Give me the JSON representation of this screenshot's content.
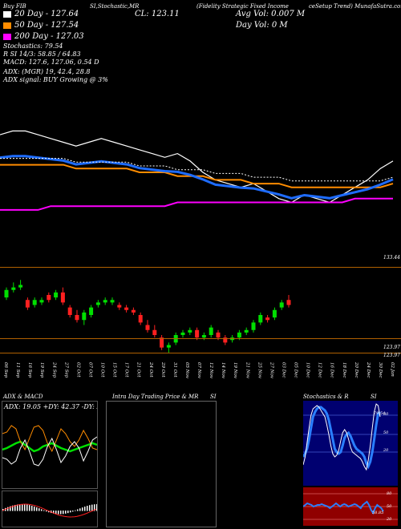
{
  "header": {
    "title_left": "Buy FIB",
    "title_mid": "SI,Stochastic,MR",
    "title_right": "(Fidelity Strategic Fixed Income",
    "title_right2": "ceSetup Trend) MunafaSutra.com",
    "close": "CL: 123.11",
    "avg_vol": "Avg Vol: 0.007 M",
    "day_vol": "Day Vol: 0   M",
    "ema20": "20  Day - 127.64",
    "ema50": "50  Day - 127.54",
    "ema200": "200  Day - 127.03",
    "stochastics": "Stochastics: 79.54",
    "rsi": "R          SI 14/3: 58.85 / 64.83",
    "macd": "MACD: 127.6, 127.06, 0.54  D",
    "adx": "ADX:                  (MGR) 19, 42.4, 28.8",
    "adx_signal": "ADX  signal:                    BUY Growing @ 3%"
  },
  "colors": {
    "ema20": "#ffffff",
    "ema50": "#ff8c00",
    "ema200": "#ff00ff",
    "blue": "#1e6cff",
    "up": "#00e000",
    "down": "#ff2020",
    "sep": "#b06000"
  },
  "price_axis": [
    "133.44",
    "123.97",
    "123.97"
  ],
  "x_labels": [
    "06 Sep",
    "11 Sep",
    "16 Sep",
    "19 Sep",
    "24 Sep",
    "27 Sep",
    "02 Oct",
    "07 Oct",
    "10 Oct",
    "15 Oct",
    "17 Oct",
    "21 Oct",
    "24 Oct",
    "29 Oct",
    "31 Oct",
    "05 Nov",
    "07 Nov",
    "12 Nov",
    "14 Nov",
    "19 Nov",
    "21 Nov",
    "25 Nov",
    "27 Nov",
    "03 Dec",
    "05 Dec",
    "10 Dec",
    "12 Dec",
    "16 Dec",
    "18 Dec",
    "20 Dec",
    "24 Dec",
    "30 Dec",
    "02 Jan"
  ],
  "panels": {
    "adx_title": "ADX  & MACD",
    "adx_values": "ADX: 19.05 +DY: 42.37 -DY: 28.81",
    "intra_title": "Intra  Day Trading Price  & MR",
    "intra_si": "SI",
    "stoch_title": "Stochastics & R",
    "stoch_si": "SI",
    "stoch_ticks": [
      "80",
      "50",
      "20"
    ],
    "stoch_val": "79.54",
    "rsi_ticks": [
      "80",
      "50",
      "20"
    ],
    "rsi_val": "58.85"
  },
  "chart_data": [
    {
      "type": "candlestick",
      "title": "FIB daily candles",
      "ohlc": [
        [
          124.9,
          125.3,
          124.8,
          125.2
        ],
        [
          125.2,
          125.5,
          125.1,
          125.3
        ],
        [
          125.3,
          125.6,
          125.2,
          125.4
        ],
        [
          124.8,
          124.9,
          124.4,
          124.5
        ],
        [
          124.6,
          124.9,
          124.5,
          124.8
        ],
        [
          124.7,
          124.9,
          124.6,
          124.8
        ],
        [
          125.0,
          125.1,
          124.7,
          124.8
        ],
        [
          124.9,
          125.2,
          124.8,
          125.1
        ],
        [
          125.1,
          125.3,
          124.6,
          124.7
        ],
        [
          124.5,
          124.6,
          124.1,
          124.2
        ],
        [
          124.2,
          124.4,
          123.9,
          124.0
        ],
        [
          124.0,
          124.4,
          123.8,
          124.3
        ],
        [
          124.2,
          124.6,
          124.1,
          124.5
        ],
        [
          124.6,
          124.8,
          124.5,
          124.7
        ],
        [
          124.7,
          124.9,
          124.6,
          124.8
        ],
        [
          124.7,
          124.9,
          124.6,
          124.8
        ],
        [
          124.6,
          124.7,
          124.4,
          124.5
        ],
        [
          124.5,
          124.6,
          124.3,
          124.4
        ],
        [
          124.4,
          124.5,
          124.2,
          124.3
        ],
        [
          124.2,
          124.3,
          123.8,
          123.9
        ],
        [
          123.8,
          124.0,
          123.5,
          123.6
        ],
        [
          123.6,
          123.8,
          123.3,
          123.4
        ],
        [
          123.3,
          123.4,
          122.8,
          122.9
        ],
        [
          122.9,
          123.1,
          122.7,
          123.0
        ],
        [
          123.1,
          123.5,
          123.0,
          123.4
        ],
        [
          123.4,
          123.6,
          123.3,
          123.5
        ],
        [
          123.5,
          123.7,
          123.4,
          123.6
        ],
        [
          123.6,
          123.7,
          123.2,
          123.3
        ],
        [
          123.3,
          123.5,
          123.2,
          123.4
        ],
        [
          123.4,
          123.8,
          123.3,
          123.7
        ],
        [
          123.5,
          123.6,
          123.2,
          123.3
        ],
        [
          123.3,
          123.4,
          123.0,
          123.1
        ],
        [
          123.2,
          123.4,
          123.1,
          123.3
        ],
        [
          123.3,
          123.6,
          123.2,
          123.5
        ],
        [
          123.5,
          123.7,
          123.4,
          123.6
        ],
        [
          123.6,
          124.0,
          123.5,
          123.9
        ],
        [
          123.9,
          124.3,
          123.8,
          124.2
        ],
        [
          124.1,
          124.2,
          123.9,
          124.0
        ],
        [
          124.1,
          124.5,
          124.0,
          124.4
        ],
        [
          124.5,
          124.8,
          124.4,
          124.7
        ],
        [
          124.8,
          125.0,
          124.5,
          124.6
        ]
      ],
      "ylim": [
        122.6,
        125.8
      ]
    },
    {
      "type": "line",
      "title": "EMA and bands",
      "series": [
        {
          "name": "20  Day",
          "values": [
            127.2,
            127.3,
            127.3,
            127.2,
            127.1,
            127.0,
            126.9,
            127.0,
            127.1,
            127.0,
            126.9,
            126.8,
            126.7,
            126.6,
            126.7,
            126.5,
            126.2,
            126.0,
            125.9,
            125.8,
            125.9,
            125.7,
            125.5,
            125.4,
            125.6,
            125.5,
            125.4,
            125.6,
            125.8,
            126.0,
            126.3,
            126.5
          ]
        },
        {
          "name": "50  Day",
          "values": [
            126.4,
            126.4,
            126.4,
            126.4,
            126.4,
            126.4,
            126.3,
            126.3,
            126.3,
            126.3,
            126.3,
            126.2,
            126.2,
            126.2,
            126.1,
            126.1,
            126.1,
            126.0,
            126.0,
            126.0,
            125.9,
            125.9,
            125.9,
            125.8,
            125.8,
            125.8,
            125.8,
            125.8,
            125.8,
            125.8,
            125.8,
            125.9
          ]
        },
        {
          "name": "200  Day",
          "values": [
            125.2,
            125.2,
            125.2,
            125.2,
            125.3,
            125.3,
            125.3,
            125.3,
            125.3,
            125.3,
            125.3,
            125.3,
            125.3,
            125.3,
            125.4,
            125.4,
            125.4,
            125.4,
            125.4,
            125.4,
            125.4,
            125.4,
            125.4,
            125.4,
            125.4,
            125.4,
            125.4,
            125.4,
            125.5,
            125.5,
            125.5,
            125.5
          ]
        }
      ]
    }
  ]
}
